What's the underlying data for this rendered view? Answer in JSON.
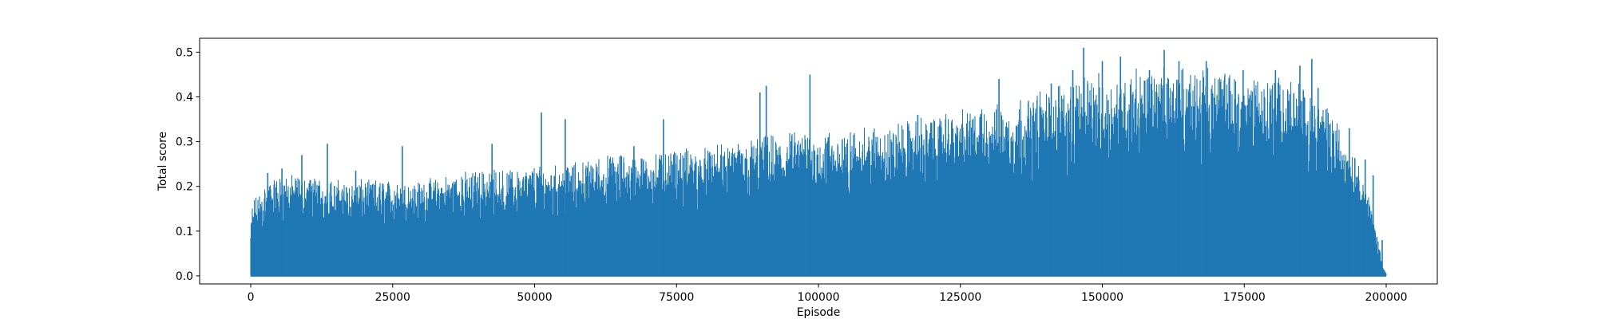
{
  "chart_data": {
    "type": "line",
    "title": "",
    "xlabel": "Episode",
    "ylabel": "Total score",
    "xlim": [
      -9000,
      209000
    ],
    "ylim": [
      -0.018,
      0.531
    ],
    "xticks": [
      0,
      25000,
      50000,
      75000,
      100000,
      125000,
      150000,
      175000,
      200000
    ],
    "xtick_labels": [
      "0",
      "25000",
      "50000",
      "75000",
      "100000",
      "125000",
      "150000",
      "175000",
      "200000"
    ],
    "yticks": [
      0.0,
      0.1,
      0.2,
      0.3,
      0.4,
      0.5
    ],
    "ytick_labels": [
      "0.0",
      "0.1",
      "0.2",
      "0.3",
      "0.4",
      "0.5"
    ],
    "grid": false,
    "legend": null,
    "series": [
      {
        "name": "Total score",
        "color": "#1f77b4",
        "x_range": [
          0,
          200000
        ],
        "y_min": 0.0,
        "envelope_x": [
          0,
          300,
          1000,
          2000,
          3000,
          5000,
          10000,
          15000,
          20000,
          25000,
          30000,
          35000,
          40000,
          45000,
          50000,
          55000,
          60000,
          65000,
          70000,
          75000,
          80000,
          85000,
          90000,
          95000,
          100000,
          105000,
          110000,
          115000,
          120000,
          125000,
          130000,
          135000,
          140000,
          145000,
          150000,
          155000,
          160000,
          165000,
          170000,
          175000,
          180000,
          185000,
          190000,
          192000,
          195000,
          197000,
          198500,
          199500,
          200000
        ],
        "envelope_y": [
          0.09,
          0.14,
          0.15,
          0.17,
          0.18,
          0.19,
          0.19,
          0.18,
          0.18,
          0.18,
          0.18,
          0.19,
          0.2,
          0.2,
          0.21,
          0.21,
          0.22,
          0.23,
          0.23,
          0.24,
          0.24,
          0.25,
          0.26,
          0.27,
          0.27,
          0.27,
          0.28,
          0.29,
          0.3,
          0.31,
          0.32,
          0.33,
          0.35,
          0.37,
          0.38,
          0.39,
          0.39,
          0.39,
          0.39,
          0.38,
          0.38,
          0.36,
          0.32,
          0.28,
          0.22,
          0.15,
          0.07,
          0.02,
          0.005
        ],
        "peaks": [
          {
            "x": 3000,
            "y": 0.23
          },
          {
            "x": 5500,
            "y": 0.24
          },
          {
            "x": 9000,
            "y": 0.27
          },
          {
            "x": 13500,
            "y": 0.295
          },
          {
            "x": 18500,
            "y": 0.235
          },
          {
            "x": 26700,
            "y": 0.29
          },
          {
            "x": 42500,
            "y": 0.295
          },
          {
            "x": 51200,
            "y": 0.365
          },
          {
            "x": 55400,
            "y": 0.35
          },
          {
            "x": 67500,
            "y": 0.29
          },
          {
            "x": 72700,
            "y": 0.35
          },
          {
            "x": 89700,
            "y": 0.41
          },
          {
            "x": 90800,
            "y": 0.425
          },
          {
            "x": 98500,
            "y": 0.45
          },
          {
            "x": 117500,
            "y": 0.36
          },
          {
            "x": 131800,
            "y": 0.44
          },
          {
            "x": 141000,
            "y": 0.43
          },
          {
            "x": 144800,
            "y": 0.46
          },
          {
            "x": 146700,
            "y": 0.51
          },
          {
            "x": 150000,
            "y": 0.48
          },
          {
            "x": 153200,
            "y": 0.49
          },
          {
            "x": 158300,
            "y": 0.46
          },
          {
            "x": 160900,
            "y": 0.505
          },
          {
            "x": 163500,
            "y": 0.48
          },
          {
            "x": 168300,
            "y": 0.48
          },
          {
            "x": 174800,
            "y": 0.46
          },
          {
            "x": 180500,
            "y": 0.46
          },
          {
            "x": 184800,
            "y": 0.47
          },
          {
            "x": 186900,
            "y": 0.485
          },
          {
            "x": 188000,
            "y": 0.42
          },
          {
            "x": 193500,
            "y": 0.33
          },
          {
            "x": 196300,
            "y": 0.26
          },
          {
            "x": 197700,
            "y": 0.225
          },
          {
            "x": 199300,
            "y": 0.08
          }
        ]
      }
    ]
  }
}
